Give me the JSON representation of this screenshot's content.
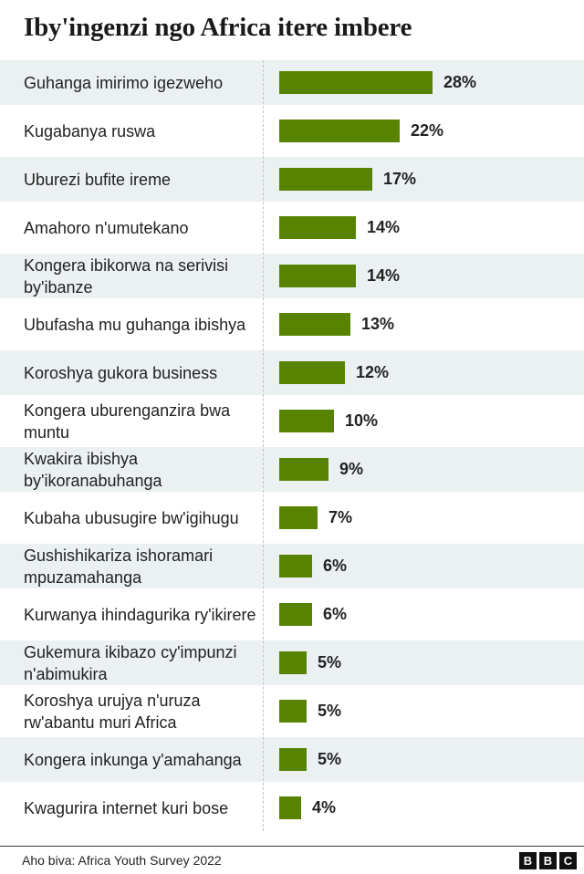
{
  "title": "Iby'ingenzi ngo Africa itere imbere",
  "source": "Aho biva: Africa Youth Survey 2022",
  "logo": [
    "B",
    "B",
    "C"
  ],
  "colors": {
    "bar": "#588300",
    "shade": "#ebf0f2"
  },
  "chart_data": {
    "type": "bar",
    "orientation": "horizontal",
    "unit": "%",
    "xlim": [
      0,
      30
    ],
    "categories": [
      "Guhanga imirimo igezweho",
      "Kugabanya ruswa",
      "Uburezi bufite ireme",
      "Amahoro n'umutekano",
      "Kongera ibikorwa na serivisi by'ibanze",
      "Ubufasha mu guhanga ibishya",
      "Koroshya gukora business",
      "Kongera uburenganzira bwa muntu",
      "Kwakira ibishya by'ikoranabuhanga",
      "Kubaha ubusugire bw'igihugu",
      "Gushishikariza ishoramari mpuzamahanga",
      "Kurwanya ihindagurika ry'ikirere",
      "Gukemura ikibazo cy'impunzi n'abimukira",
      "Koroshya urujya n'uruza rw'abantu muri Africa",
      "Kongera inkunga y'amahanga",
      "Kwagurira internet kuri bose"
    ],
    "values": [
      28,
      22,
      17,
      14,
      14,
      13,
      12,
      10,
      9,
      7,
      6,
      6,
      5,
      5,
      5,
      4
    ],
    "labels": [
      "28%",
      "22%",
      "17%",
      "14%",
      "14%",
      "13%",
      "12%",
      "10%",
      "9%",
      "7%",
      "6%",
      "6%",
      "5%",
      "5%",
      "5%",
      "4%"
    ]
  }
}
